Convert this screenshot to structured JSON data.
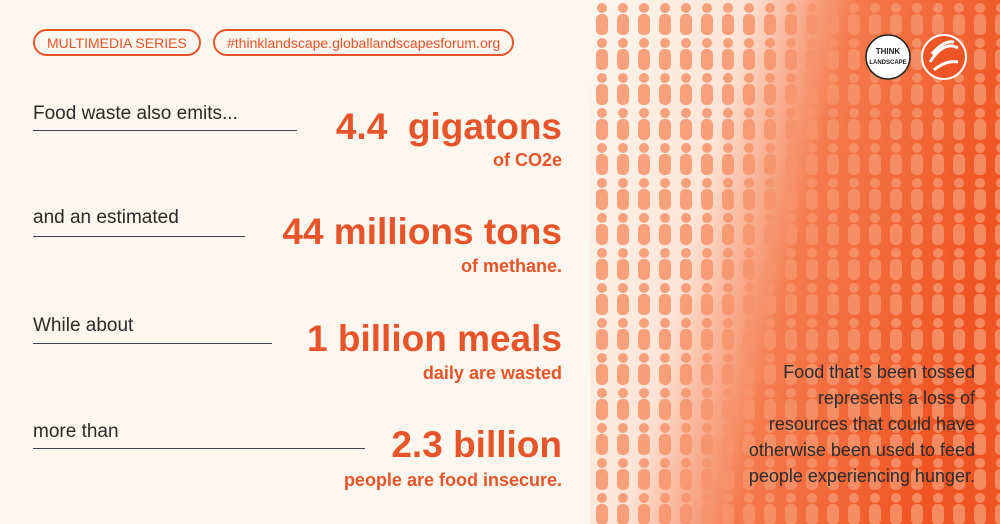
{
  "header": {
    "series_tag": "MULTIMEDIA SERIES",
    "hashtag_tag": "#thinklandscape.globallandscapesforum.org"
  },
  "logo": {
    "lines": [
      "THINK",
      "LANDSCAPE"
    ]
  },
  "stats": [
    {
      "lead": "Food waste also emits...",
      "figure": "4.4  gigatons",
      "caption": "of CO2e"
    },
    {
      "lead": "and an estimated",
      "figure": "44 millions tons",
      "caption": "of methane."
    },
    {
      "lead": "While about",
      "figure": "1 billion meals",
      "caption": "daily are wasted"
    },
    {
      "lead": "more than",
      "figure": "2.3 billion",
      "caption": "people are food insecure."
    }
  ],
  "side_text": [
    "Food that’s been tossed",
    "represents a loss of",
    "resources that could have",
    "otherwise been used to feed",
    "people experiencing hunger."
  ]
}
